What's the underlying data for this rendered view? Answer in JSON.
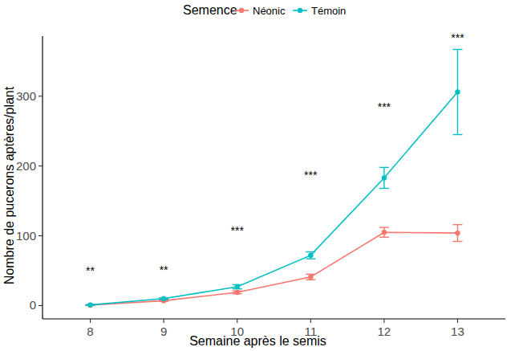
{
  "chart_data": {
    "type": "line",
    "x_label": "Semaine après le semis",
    "y_label": "Nombre de pucerons aptères/plant",
    "legend_title": "Semence",
    "legend": "top",
    "grid": false,
    "marker": "circle",
    "x": [
      8,
      9,
      10,
      11,
      12,
      13
    ],
    "xlim": [
      7.35,
      13.65
    ],
    "xticks": [
      8,
      9,
      10,
      11,
      12,
      13
    ],
    "ylim": [
      -19,
      386
    ],
    "yticks": [
      0,
      100,
      200,
      300
    ],
    "series": [
      {
        "name": "Néonic",
        "color": "#F8766D",
        "values": [
          0.5,
          7,
          19,
          41,
          105,
          104
        ],
        "errors": [
          0.3,
          1,
          2,
          4,
          7,
          12
        ]
      },
      {
        "name": "Témoin",
        "color": "#00BFC4",
        "values": [
          1,
          10,
          27,
          72,
          183,
          306
        ],
        "errors": [
          0.5,
          1,
          3,
          5,
          15,
          61
        ]
      }
    ],
    "annotations": [
      {
        "x": 8,
        "y": 50,
        "text": "**"
      },
      {
        "x": 9,
        "y": 51,
        "text": "**"
      },
      {
        "x": 10,
        "y": 108,
        "text": "***"
      },
      {
        "x": 11,
        "y": 187,
        "text": "***"
      },
      {
        "x": 12,
        "y": 285,
        "text": "***"
      },
      {
        "x": 13,
        "y": 384,
        "text": "***"
      }
    ]
  }
}
